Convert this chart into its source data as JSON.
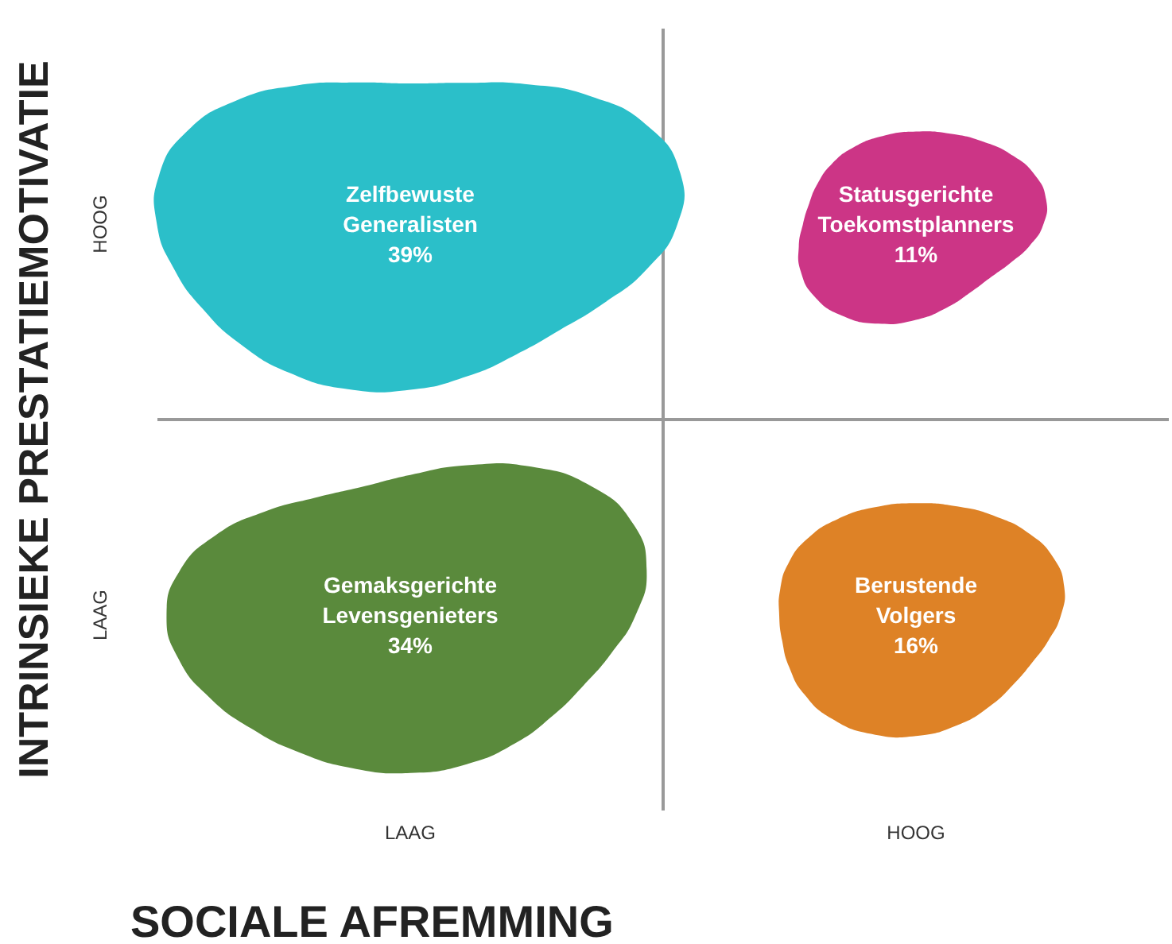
{
  "chart_data": {
    "type": "other",
    "xlabel": "SOCIALE AFREMMING",
    "ylabel": "INTRINSIEKE PRESTATIEMOTIVATIE",
    "categories": [
      "Zelfbewuste\nGeneralisten",
      "Statusgerichte\nToekomstplanners",
      "Gemaksgerichte\nLevensgenieters",
      "Berustende\nVolgers"
    ],
    "values": [
      39,
      11,
      34,
      16
    ],
    "value_labels": [
      "39%",
      "11%",
      "34%",
      "16%"
    ],
    "colors": [
      "#2bbfc9",
      "#cc3586",
      "#5a8a3c",
      "#de8226"
    ],
    "annotations": [
      "HOOG",
      "LAAG",
      "LAAG",
      "HOOG"
    ]
  }
}
